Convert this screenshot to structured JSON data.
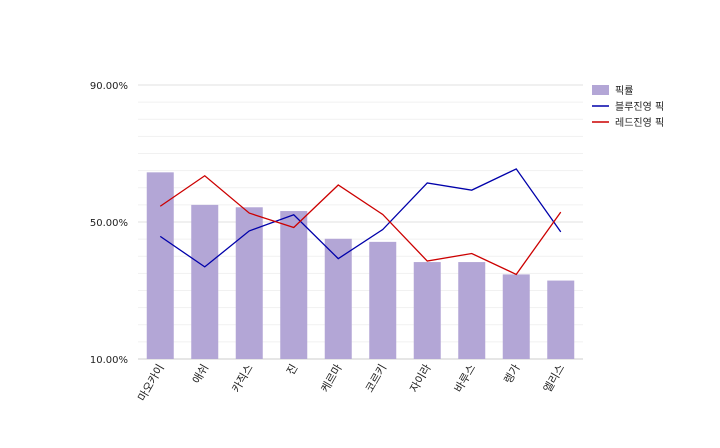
{
  "chart_data": {
    "type": "bar",
    "categories": [
      "마오카이",
      "애쉬",
      "카직스",
      "진",
      "케르마",
      "코르키",
      "자이라",
      "바루스",
      "렝가",
      "엘리스"
    ],
    "series": [
      {
        "name": "픽률",
        "type": "bar",
        "color": "#b3a6d6",
        "values": [
          64.5,
          55.0,
          54.3,
          53.2,
          45.1,
          44.2,
          38.3,
          38.3,
          34.7,
          32.9
        ]
      },
      {
        "name": "블루진영 픽",
        "type": "line",
        "color": "#0000aa",
        "values": [
          45.8,
          36.9,
          47.4,
          52.1,
          39.3,
          47.8,
          61.4,
          59.3,
          65.5,
          47.1
        ]
      },
      {
        "name": "레드진영 픽",
        "type": "line",
        "color": "#cc0000",
        "values": [
          54.6,
          63.5,
          52.6,
          48.4,
          60.8,
          52.2,
          38.6,
          40.8,
          34.7,
          52.9
        ]
      }
    ],
    "yticks": [
      "10.00%",
      "50.00%",
      "90.00%"
    ],
    "ylim": [
      10,
      90
    ],
    "legend_position": "right",
    "grid": true
  }
}
